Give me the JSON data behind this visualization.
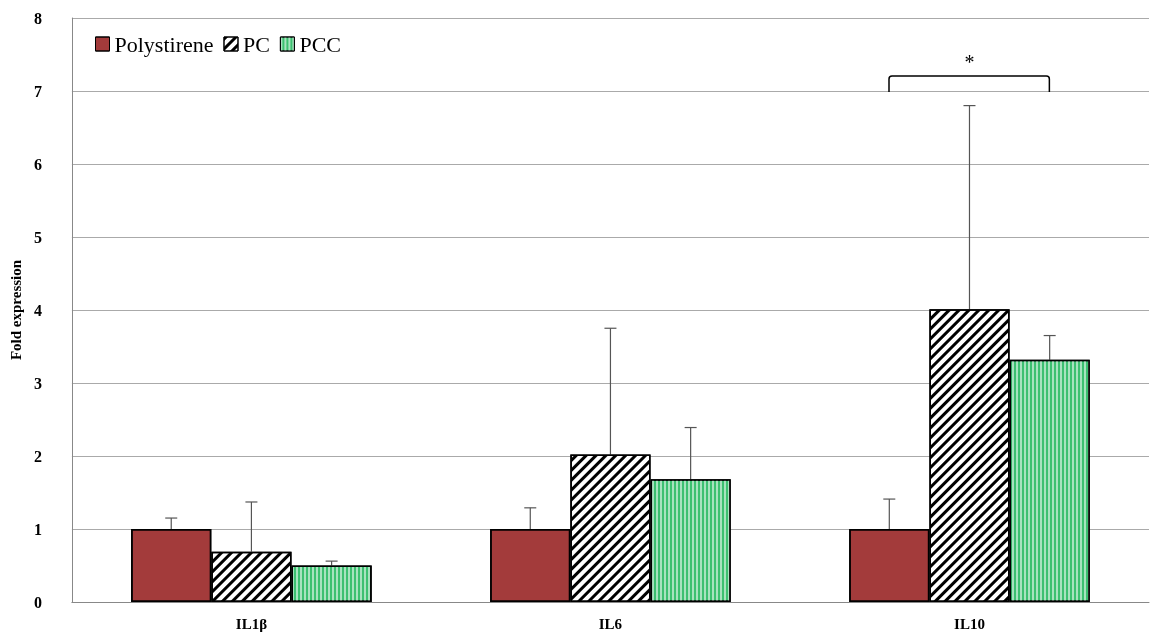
{
  "chart_data": {
    "type": "bar",
    "ylabel": "Fold expression",
    "categories": [
      "IL1β",
      "IL6",
      "IL10"
    ],
    "series": [
      {
        "name": "Polystirene",
        "color": "#a33b3b",
        "values": [
          1.0,
          1.0,
          1.0
        ],
        "errors": [
          [
            1.0,
            1.15
          ],
          [
            1.0,
            1.29
          ],
          [
            1.0,
            1.41
          ]
        ]
      },
      {
        "name": "PC",
        "color": "#ffffff",
        "values": [
          0.69,
          2.02,
          4.01
        ],
        "errors": [
          [
            0.69,
            1.37
          ],
          [
            2.02,
            3.75
          ],
          [
            4.01,
            6.8
          ]
        ]
      },
      {
        "name": "PCC",
        "color": "#3cc070",
        "values": [
          0.5,
          1.68,
          3.32
        ],
        "errors": [
          [
            0.5,
            0.56
          ],
          [
            1.68,
            2.39
          ],
          [
            3.32,
            3.65
          ]
        ]
      }
    ],
    "ylim": [
      0,
      8
    ],
    "yticks": [
      0,
      1,
      2,
      3,
      4,
      5,
      6,
      7,
      8
    ],
    "grid": "y",
    "legend": "top left",
    "annotations": [
      "*"
    ]
  }
}
